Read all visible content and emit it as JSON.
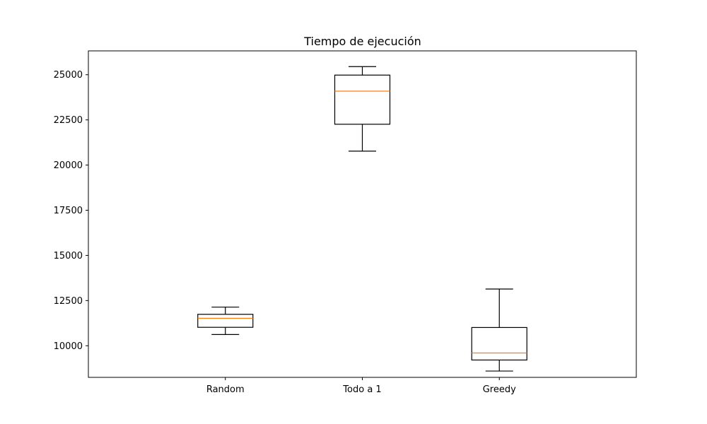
{
  "chart_data": {
    "type": "boxplot",
    "title": "Tiempo de ejecución",
    "xlabel": "",
    "ylabel": "",
    "categories": [
      "Random",
      "Todo a 1",
      "Greedy"
    ],
    "boxes": [
      {
        "category": "Random",
        "whisker_low": 10620,
        "q1": 11020,
        "median": 11520,
        "q3": 11740,
        "whisker_high": 12140
      },
      {
        "category": "Todo a 1",
        "whisker_low": 20770,
        "q1": 22260,
        "median": 24090,
        "q3": 24980,
        "whisker_high": 25450
      },
      {
        "category": "Greedy",
        "whisker_low": 8600,
        "q1": 9210,
        "median": 9600,
        "q3": 11010,
        "whisker_high": 13140
      }
    ],
    "ylim": [
      8250,
      26320
    ],
    "yticks": [
      10000,
      12500,
      15000,
      17500,
      20000,
      22500,
      25000
    ],
    "ytick_labels": [
      "10000",
      "12500",
      "15000",
      "17500",
      "20000",
      "22500",
      "25000"
    ],
    "grid": false,
    "colors": {
      "box": "#000000",
      "median": "#ff7f0e",
      "axes": "#000000"
    }
  }
}
